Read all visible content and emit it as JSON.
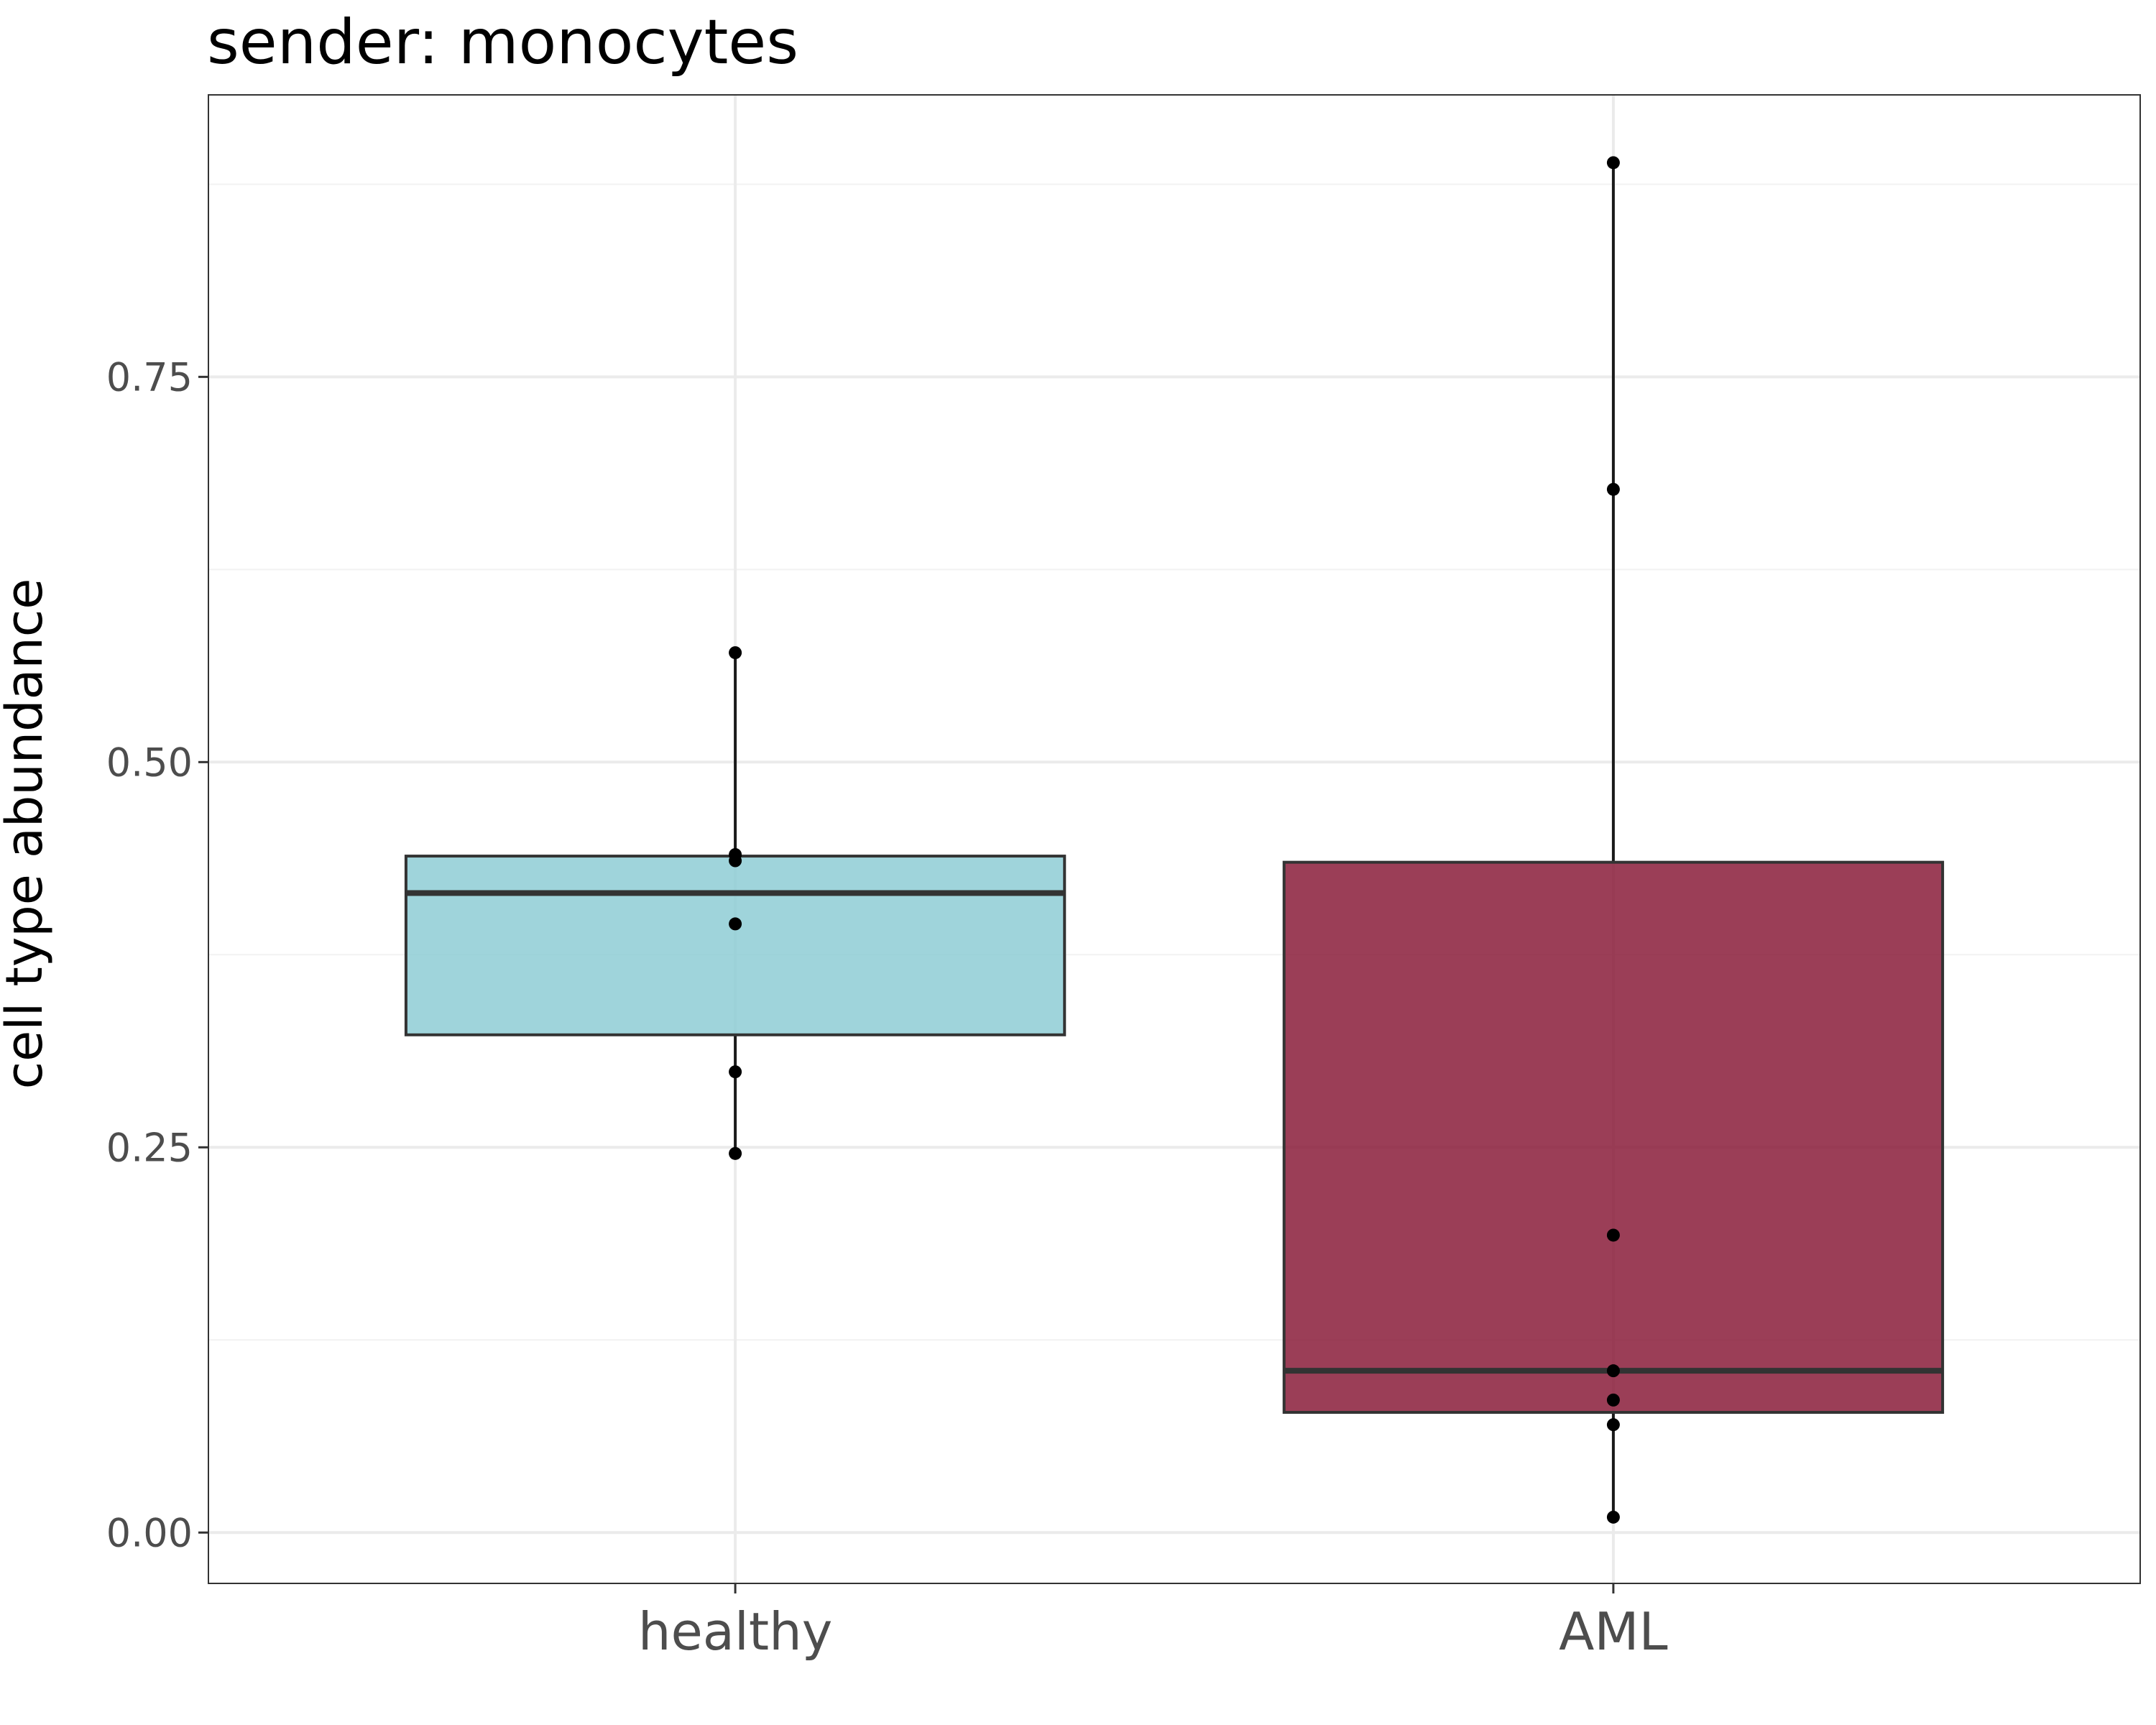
{
  "chart_data": {
    "type": "box",
    "title": "sender: monocytes",
    "xlabel": "",
    "ylabel": "cell type abundance",
    "ylim": [
      -0.033,
      0.933
    ],
    "yticks": [
      0.0,
      0.25,
      0.5,
      0.75
    ],
    "ytick_labels": [
      "0.00",
      "0.25",
      "0.50",
      "0.75"
    ],
    "grid": true,
    "categories": [
      "healthy",
      "AML"
    ],
    "boxes": [
      {
        "category": "healthy",
        "color": "#8ecdd5",
        "q1": 0.323,
        "median": 0.415,
        "q3": 0.439,
        "whisker_low": 0.246,
        "whisker_high": 0.571,
        "points": [
          0.571,
          0.44,
          0.436,
          0.395,
          0.299,
          0.246
        ]
      },
      {
        "category": "AML",
        "color": "#8a1c3a",
        "q1": 0.078,
        "median": 0.105,
        "q3": 0.435,
        "whisker_low": 0.01,
        "whisker_high": 0.889,
        "points": [
          0.889,
          0.677,
          0.193,
          0.105,
          0.086,
          0.07,
          0.01
        ]
      }
    ]
  }
}
